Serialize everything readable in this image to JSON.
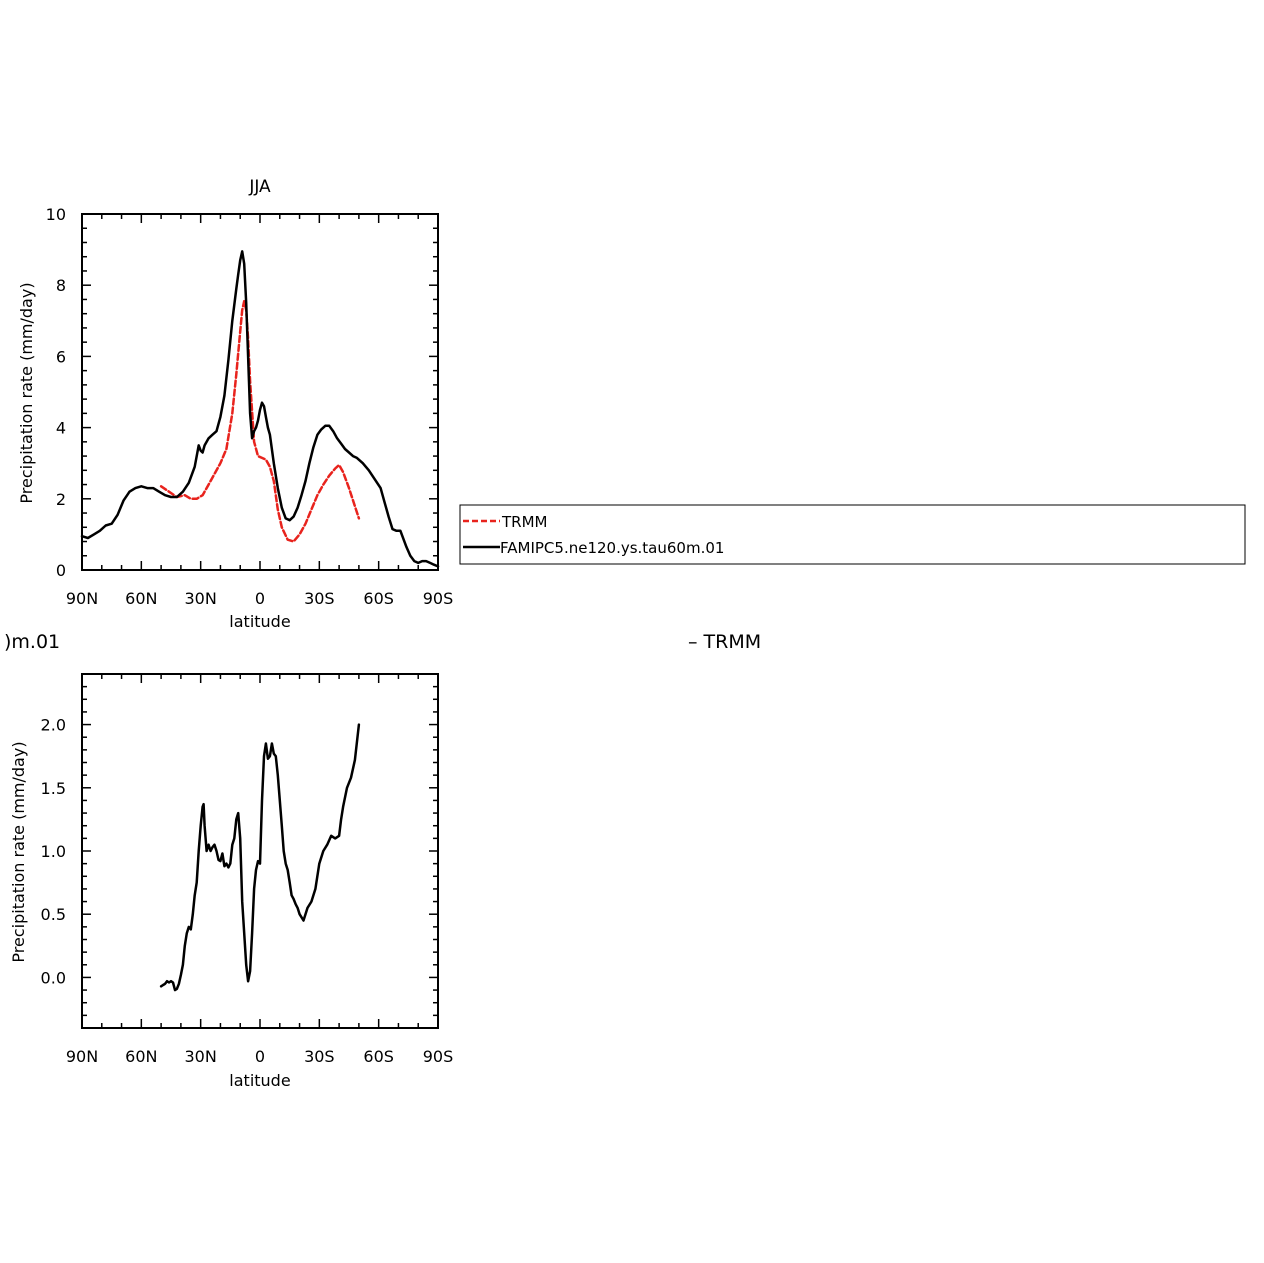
{
  "colors": {
    "trmm": "#e8231d",
    "model": "#000000",
    "axis": "#000000",
    "background": "#ffffff"
  },
  "chart_data": [
    {
      "type": "line",
      "title": "JJA",
      "xlabel": "latitude",
      "ylabel": "Precipitation rate (mm/day)",
      "xlim": [
        90,
        -90
      ],
      "x_axis_note": "latitude, positive = N, negative = S; axis runs 90N (left) to 90S (right)",
      "ylim": [
        0,
        10
      ],
      "x_ticks": [
        90,
        60,
        30,
        0,
        -30,
        -60,
        -90
      ],
      "x_tick_labels": [
        "90N",
        "60N",
        "30N",
        "0",
        "30S",
        "60S",
        "90S"
      ],
      "y_ticks": [
        0,
        2,
        4,
        6,
        8,
        10
      ],
      "y_tick_labels": [
        "0",
        "2",
        "4",
        "6",
        "8",
        "10"
      ],
      "legend": {
        "placement": "right",
        "entries": [
          "TRMM",
          "FAMIPC5.ne120.ys.tau60m.01"
        ]
      },
      "series": [
        {
          "name": "TRMM",
          "style": "dashed",
          "color": "#e8231d",
          "x": [
            50,
            46,
            42,
            38,
            35,
            32,
            29,
            26,
            23,
            20,
            17,
            14,
            12,
            10,
            9,
            8,
            7,
            6,
            5,
            3,
            1,
            -1,
            -3,
            -5,
            -7,
            -9,
            -11,
            -14,
            -17,
            -20,
            -23,
            -26,
            -29,
            -32,
            -35,
            -38,
            -40,
            -42,
            -45,
            -50
          ],
          "y": [
            2.35,
            2.2,
            2.05,
            2.1,
            2.0,
            2.0,
            2.1,
            2.4,
            2.7,
            3.0,
            3.4,
            4.4,
            5.5,
            6.7,
            7.3,
            7.55,
            7.3,
            6.5,
            5.3,
            3.6,
            3.2,
            3.15,
            3.1,
            2.9,
            2.5,
            1.7,
            1.2,
            0.85,
            0.8,
            1.0,
            1.3,
            1.7,
            2.1,
            2.4,
            2.65,
            2.85,
            2.95,
            2.75,
            2.3,
            1.45
          ]
        },
        {
          "name": "FAMIPC5.ne120.ys.tau60m.01",
          "style": "solid",
          "color": "#000000",
          "x": [
            90,
            87,
            84,
            81,
            78,
            75,
            72,
            69,
            66,
            63,
            60,
            57,
            54,
            51,
            48,
            45,
            42,
            39,
            36,
            33,
            31,
            30,
            29,
            28,
            26,
            24,
            22,
            20,
            18,
            16,
            14,
            12,
            11,
            10,
            9,
            8,
            7,
            6,
            5,
            4,
            3,
            2,
            1,
            0,
            -1,
            -2,
            -3,
            -4,
            -5,
            -7,
            -9,
            -11,
            -13,
            -15,
            -17,
            -19,
            -21,
            -23,
            -25,
            -27,
            -29,
            -31,
            -33,
            -35,
            -37,
            -39,
            -41,
            -43,
            -45,
            -47,
            -49,
            -52,
            -55,
            -58,
            -61,
            -63,
            -65,
            -67,
            -69,
            -71,
            -72,
            -74,
            -76,
            -78,
            -80,
            -82,
            -84,
            -86,
            -88,
            -90
          ],
          "y": [
            0.95,
            0.9,
            1.0,
            1.1,
            1.25,
            1.3,
            1.55,
            1.95,
            2.2,
            2.3,
            2.35,
            2.3,
            2.3,
            2.2,
            2.1,
            2.05,
            2.05,
            2.2,
            2.45,
            2.9,
            3.5,
            3.35,
            3.3,
            3.5,
            3.7,
            3.8,
            3.9,
            4.3,
            4.9,
            5.9,
            7.0,
            7.9,
            8.3,
            8.7,
            8.95,
            8.6,
            7.5,
            6.0,
            4.4,
            3.7,
            3.9,
            4.0,
            4.2,
            4.5,
            4.7,
            4.6,
            4.3,
            4.0,
            3.8,
            3.0,
            2.3,
            1.75,
            1.45,
            1.4,
            1.5,
            1.75,
            2.1,
            2.5,
            3.0,
            3.45,
            3.8,
            3.95,
            4.05,
            4.05,
            3.9,
            3.7,
            3.55,
            3.4,
            3.3,
            3.2,
            3.15,
            3.0,
            2.8,
            2.55,
            2.3,
            1.9,
            1.5,
            1.15,
            1.1,
            1.1,
            0.95,
            0.65,
            0.4,
            0.25,
            0.2,
            0.25,
            0.25,
            0.2,
            0.15,
            0.1
          ]
        }
      ]
    },
    {
      "type": "line",
      "title": "",
      "xlabel": "latitude",
      "ylabel": "Precipitation rate (mm/day)",
      "xlim": [
        90,
        -90
      ],
      "ylim": [
        -0.4,
        2.4
      ],
      "x_ticks": [
        90,
        60,
        30,
        0,
        -30,
        -60,
        -90
      ],
      "x_tick_labels": [
        "90N",
        "60N",
        "30N",
        "0",
        "30S",
        "60S",
        "90S"
      ],
      "y_ticks": [
        0.0,
        0.5,
        1.0,
        1.5,
        2.0
      ],
      "y_tick_labels": [
        "0.0",
        "0.5",
        "1.0",
        "1.5",
        "2.0"
      ],
      "left_title_fragment": ")m.01",
      "right_title_fragment": "– TRMM",
      "series": [
        {
          "style": "solid",
          "color": "#000000",
          "x": [
            50,
            49,
            48,
            47,
            46,
            45,
            44,
            43,
            42,
            41,
            40,
            39,
            38,
            37,
            36,
            35,
            34,
            33,
            32,
            31,
            30,
            29,
            28.5,
            28,
            27,
            26,
            25,
            24,
            23,
            22,
            21,
            20,
            19,
            18,
            17,
            16,
            15,
            14,
            13,
            12,
            11,
            10,
            9,
            8,
            7,
            6,
            5,
            4,
            3,
            2,
            1,
            0,
            -1,
            -2,
            -3,
            -4,
            -5,
            -6,
            -7,
            -8,
            -9,
            -10,
            -11,
            -12,
            -13,
            -14,
            -15,
            -16,
            -17,
            -18,
            -19,
            -20,
            -22,
            -24,
            -26,
            -28,
            -30,
            -32,
            -34,
            -36,
            -38,
            -40,
            -41,
            -42,
            -44,
            -46,
            -48,
            -50
          ],
          "y": [
            -0.07,
            -0.06,
            -0.05,
            -0.03,
            -0.04,
            -0.03,
            -0.04,
            -0.1,
            -0.09,
            -0.05,
            0.02,
            0.1,
            0.25,
            0.35,
            0.4,
            0.38,
            0.5,
            0.65,
            0.75,
            1.0,
            1.2,
            1.35,
            1.37,
            1.2,
            1.0,
            1.05,
            1.0,
            1.03,
            1.05,
            1.0,
            0.93,
            0.92,
            0.98,
            0.88,
            0.9,
            0.87,
            0.9,
            1.05,
            1.1,
            1.25,
            1.3,
            1.1,
            0.6,
            0.35,
            0.1,
            -0.03,
            0.05,
            0.35,
            0.7,
            0.85,
            0.92,
            0.9,
            1.4,
            1.75,
            1.85,
            1.73,
            1.75,
            1.85,
            1.77,
            1.75,
            1.6,
            1.4,
            1.2,
            1.0,
            0.9,
            0.85,
            0.75,
            0.65,
            0.62,
            0.58,
            0.55,
            0.5,
            0.45,
            0.55,
            0.6,
            0.7,
            0.9,
            1.0,
            1.05,
            1.12,
            1.1,
            1.12,
            1.25,
            1.35,
            1.5,
            1.58,
            1.72,
            2.0
          ]
        }
      ]
    }
  ]
}
